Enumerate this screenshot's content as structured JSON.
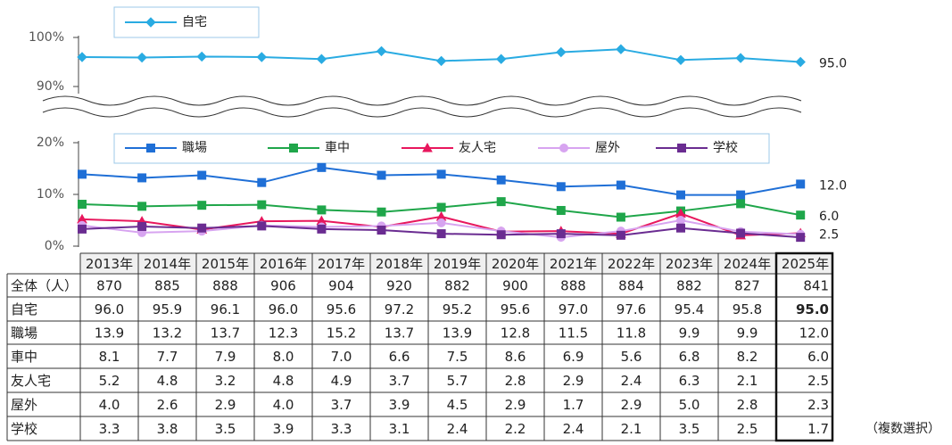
{
  "chart_data": {
    "type": "line",
    "categories": [
      "2013年",
      "2014年",
      "2015年",
      "2016年",
      "2017年",
      "2018年",
      "2019年",
      "2020年",
      "2021年",
      "2022年",
      "2023年",
      "2024年",
      "2025年"
    ],
    "panels": [
      {
        "ylim": [
          88,
          102
        ],
        "yticks": [
          {
            "value": 90,
            "label": "90%"
          },
          {
            "value": 100,
            "label": "100%"
          }
        ]
      },
      {
        "ylim": [
          0,
          20
        ],
        "yticks": [
          {
            "value": 0,
            "label": "0%"
          },
          {
            "value": 10,
            "label": "10%"
          },
          {
            "value": 20,
            "label": "20%"
          }
        ]
      }
    ],
    "sample_size": {
      "label": "全体（人）",
      "values": [
        870,
        885,
        888,
        906,
        904,
        920,
        882,
        900,
        888,
        884,
        882,
        827,
        841
      ]
    },
    "series": [
      {
        "name": "自宅",
        "panel": 0,
        "color": "#29abe2",
        "marker": "diamond",
        "end_label": true,
        "values": [
          96.0,
          95.9,
          96.1,
          96.0,
          95.6,
          97.2,
          95.2,
          95.6,
          97.0,
          97.6,
          95.4,
          95.8,
          95.0
        ],
        "value_labels": [
          "96.0",
          "95.9",
          "96.1",
          "96.0",
          "95.6",
          "97.2",
          "95.2",
          "95.6",
          "97.0",
          "97.6",
          "95.4",
          "95.8",
          "95.0"
        ]
      },
      {
        "name": "職場",
        "panel": 1,
        "color": "#1f6fd6",
        "marker": "square",
        "end_label": true,
        "values": [
          13.9,
          13.2,
          13.7,
          12.3,
          15.2,
          13.7,
          13.9,
          12.8,
          11.5,
          11.8,
          9.9,
          9.9,
          12.0
        ],
        "value_labels": [
          "13.9",
          "13.2",
          "13.7",
          "12.3",
          "15.2",
          "13.7",
          "13.9",
          "12.8",
          "11.5",
          "11.8",
          "9.9",
          "9.9",
          "12.0"
        ]
      },
      {
        "name": "車中",
        "panel": 1,
        "color": "#1fa64a",
        "marker": "square",
        "end_label": true,
        "values": [
          8.1,
          7.7,
          7.9,
          8.0,
          7.0,
          6.6,
          7.5,
          8.6,
          6.9,
          5.6,
          6.8,
          8.2,
          6.0
        ],
        "value_labels": [
          "8.1",
          "7.7",
          "7.9",
          "8.0",
          "7.0",
          "6.6",
          "7.5",
          "8.6",
          "6.9",
          "5.6",
          "6.8",
          "8.2",
          "6.0"
        ]
      },
      {
        "name": "友人宅",
        "panel": 1,
        "color": "#e8175d",
        "marker": "triangle",
        "end_label": true,
        "values": [
          5.2,
          4.8,
          3.2,
          4.8,
          4.9,
          3.7,
          5.7,
          2.8,
          2.9,
          2.4,
          6.3,
          2.1,
          2.5
        ],
        "value_labels": [
          "5.2",
          "4.8",
          "3.2",
          "4.8",
          "4.9",
          "3.7",
          "5.7",
          "2.8",
          "2.9",
          "2.4",
          "6.3",
          "2.1",
          "2.5"
        ]
      },
      {
        "name": "屋外",
        "panel": 1,
        "color": "#d7a4f0",
        "marker": "circle",
        "end_label": false,
        "values": [
          4.0,
          2.6,
          2.9,
          4.0,
          3.7,
          3.9,
          4.5,
          2.9,
          1.7,
          2.9,
          5.0,
          2.8,
          2.3
        ],
        "value_labels": [
          "4.0",
          "2.6",
          "2.9",
          "4.0",
          "3.7",
          "3.9",
          "4.5",
          "2.9",
          "1.7",
          "2.9",
          "5.0",
          "2.8",
          "2.3"
        ]
      },
      {
        "name": "学校",
        "panel": 1,
        "color": "#6a2c91",
        "marker": "square",
        "end_label": false,
        "values": [
          3.3,
          3.8,
          3.5,
          3.9,
          3.3,
          3.1,
          2.4,
          2.2,
          2.4,
          2.1,
          3.5,
          2.5,
          1.7
        ],
        "value_labels": [
          "3.3",
          "3.8",
          "3.5",
          "3.9",
          "3.3",
          "3.1",
          "2.4",
          "2.2",
          "2.4",
          "2.1",
          "3.5",
          "2.5",
          "1.7"
        ]
      }
    ],
    "note": "（複数選択）"
  }
}
